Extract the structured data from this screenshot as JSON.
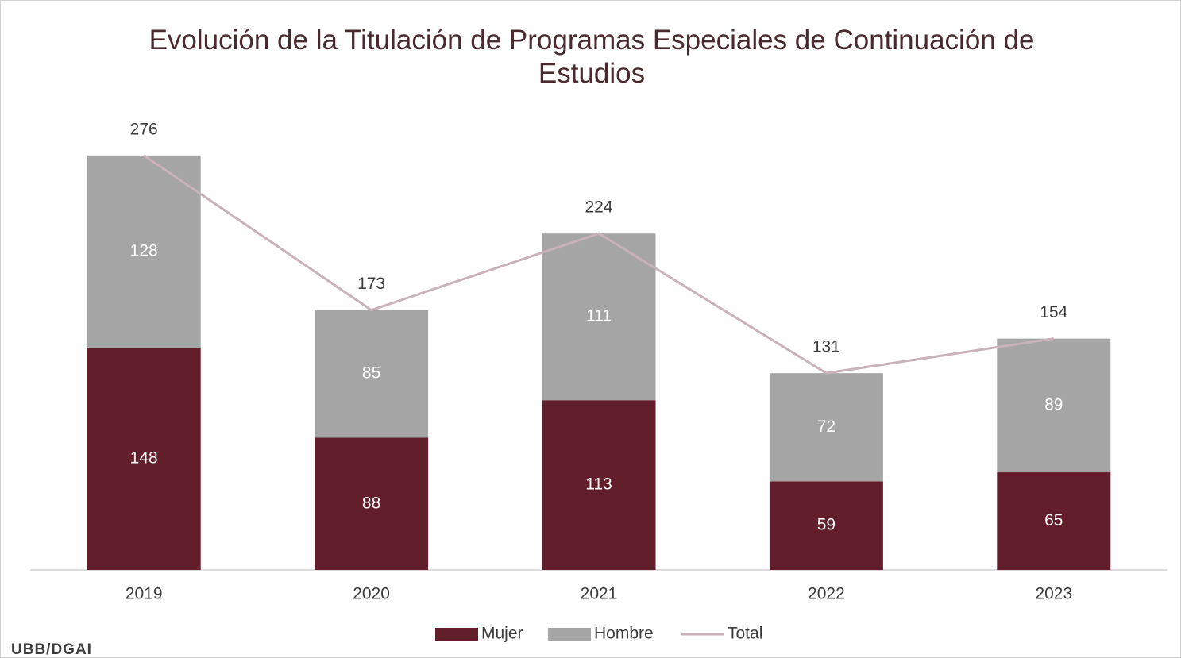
{
  "chart_data": {
    "type": "stacked_bar_line",
    "title": "Evolución de la Titulación de Programas Especiales de Continuación de Estudios",
    "categories": [
      "2019",
      "2020",
      "2021",
      "2022",
      "2023"
    ],
    "series": [
      {
        "name": "Mujer",
        "color": "#621f2b",
        "values": [
          148,
          88,
          113,
          59,
          65
        ]
      },
      {
        "name": "Hombre",
        "color": "#a5a5a5",
        "values": [
          128,
          85,
          111,
          72,
          89
        ]
      },
      {
        "name": "Total",
        "color": "#c9b2b8",
        "values": [
          276,
          173,
          224,
          131,
          154
        ]
      }
    ],
    "footer": "UBB/DGAI"
  }
}
